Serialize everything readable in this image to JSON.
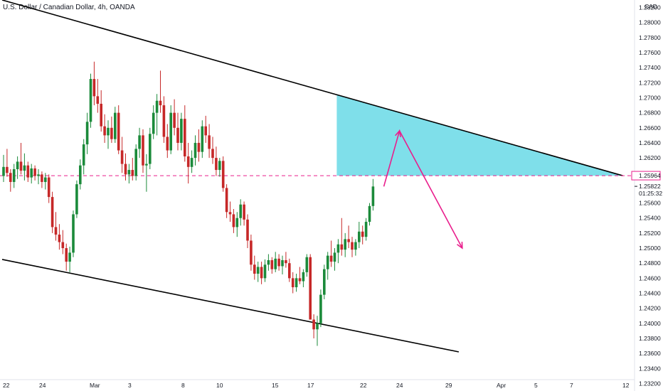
{
  "header": {
    "symbol_title": "U.S. Dollar / Canadian Dollar, 4h, OANDA"
  },
  "chart_data": {
    "type": "candlestick",
    "title": "U.S. Dollar / Canadian Dollar, 4h, OANDA",
    "currency_label": "CAD",
    "y_axis": {
      "range": [
        1.231,
        1.283
      ],
      "ticks": [
        "1.23200",
        "1.23400",
        "1.23600",
        "1.23800",
        "1.24000",
        "1.24200",
        "1.24400",
        "1.24600",
        "1.24800",
        "1.25000",
        "1.25200",
        "1.25400",
        "1.25600",
        "1.25822",
        "1.25964",
        "1.26200",
        "1.26400",
        "1.26600",
        "1.26800",
        "1.27000",
        "1.27200",
        "1.27400",
        "1.27600",
        "1.27800",
        "1.28000",
        "1.28200"
      ]
    },
    "x_axis": {
      "labels": [
        "22",
        "24",
        "Mar",
        "3",
        "8",
        "10",
        "15",
        "17",
        "22",
        "24",
        "29",
        "Apr",
        "5",
        "7",
        "12"
      ]
    },
    "price_line": {
      "value": 1.25964,
      "label": "1.25964",
      "color": "#e91e8c"
    },
    "last_price": {
      "value": 1.25822,
      "label": "1.25822"
    },
    "countdown": "01:25:32",
    "colors": {
      "up": "#26a69a",
      "up_body": "#1b8a3a",
      "down": "#c62828",
      "zone": "#7fdfea",
      "arrow": "#e91e8c",
      "trendline": "#000000"
    },
    "candles_ohlc": [
      [
        1.2596,
        1.2624,
        1.2588,
        1.2608
      ],
      [
        1.2608,
        1.2632,
        1.2595,
        1.26
      ],
      [
        1.26,
        1.2605,
        1.2575,
        1.2588
      ],
      [
        1.2588,
        1.2612,
        1.258,
        1.2605
      ],
      [
        1.2605,
        1.2622,
        1.2592,
        1.2615
      ],
      [
        1.2615,
        1.264,
        1.2598,
        1.2603
      ],
      [
        1.2603,
        1.2626,
        1.259,
        1.261
      ],
      [
        1.261,
        1.2615,
        1.2588,
        1.2594
      ],
      [
        1.2594,
        1.2612,
        1.2586,
        1.2606
      ],
      [
        1.2606,
        1.261,
        1.259,
        1.2596
      ],
      [
        1.2596,
        1.2605,
        1.2585,
        1.2598
      ],
      [
        1.2598,
        1.2602,
        1.258,
        1.2588
      ],
      [
        1.2588,
        1.26,
        1.2578,
        1.2594
      ],
      [
        1.2594,
        1.2598,
        1.256,
        1.2568
      ],
      [
        1.2568,
        1.2575,
        1.252,
        1.2528
      ],
      [
        1.2528,
        1.2548,
        1.251,
        1.2518
      ],
      [
        1.2518,
        1.2532,
        1.2498,
        1.2508
      ],
      [
        1.2508,
        1.2524,
        1.2492,
        1.25
      ],
      [
        1.25,
        1.2506,
        1.247,
        1.2482
      ],
      [
        1.2482,
        1.2502,
        1.2468,
        1.2494
      ],
      [
        1.2494,
        1.255,
        1.2488,
        1.2545
      ],
      [
        1.2545,
        1.259,
        1.254,
        1.2585
      ],
      [
        1.2585,
        1.2618,
        1.2578,
        1.261
      ],
      [
        1.261,
        1.2645,
        1.2598,
        1.2638
      ],
      [
        1.2638,
        1.268,
        1.2625,
        1.2668
      ],
      [
        1.2668,
        1.2732,
        1.266,
        1.2725
      ],
      [
        1.2725,
        1.2748,
        1.269,
        1.2702
      ],
      [
        1.2702,
        1.2725,
        1.268,
        1.2692
      ],
      [
        1.2692,
        1.271,
        1.2655,
        1.2662
      ],
      [
        1.2662,
        1.2678,
        1.264,
        1.265
      ],
      [
        1.265,
        1.267,
        1.2632,
        1.266
      ],
      [
        1.266,
        1.2675,
        1.264,
        1.2645
      ],
      [
        1.2645,
        1.2688,
        1.264,
        1.268
      ],
      [
        1.268,
        1.269,
        1.2625,
        1.263
      ],
      [
        1.263,
        1.2648,
        1.26,
        1.2612
      ],
      [
        1.2612,
        1.2626,
        1.259,
        1.2598
      ],
      [
        1.2598,
        1.2612,
        1.2586,
        1.2604
      ],
      [
        1.2604,
        1.262,
        1.259,
        1.2596
      ],
      [
        1.2596,
        1.2638,
        1.259,
        1.2632
      ],
      [
        1.2632,
        1.266,
        1.262,
        1.265
      ],
      [
        1.265,
        1.2658,
        1.26,
        1.261
      ],
      [
        1.261,
        1.2625,
        1.2575,
        1.2612
      ],
      [
        1.2612,
        1.266,
        1.2605,
        1.2652
      ],
      [
        1.2652,
        1.269,
        1.2645,
        1.268
      ],
      [
        1.268,
        1.2705,
        1.265,
        1.2696
      ],
      [
        1.2696,
        1.2736,
        1.268,
        1.269
      ],
      [
        1.269,
        1.2702,
        1.264,
        1.2648
      ],
      [
        1.2648,
        1.2665,
        1.262,
        1.263
      ],
      [
        1.263,
        1.269,
        1.2625,
        1.268
      ],
      [
        1.268,
        1.2698,
        1.265,
        1.266
      ],
      [
        1.266,
        1.268,
        1.263,
        1.264
      ],
      [
        1.264,
        1.268,
        1.263,
        1.2672
      ],
      [
        1.2672,
        1.269,
        1.2615,
        1.2622
      ],
      [
        1.2622,
        1.264,
        1.2586,
        1.2608
      ],
      [
        1.2608,
        1.263,
        1.26,
        1.262
      ],
      [
        1.262,
        1.265,
        1.261,
        1.264
      ],
      [
        1.264,
        1.2658,
        1.2615,
        1.2628
      ],
      [
        1.2628,
        1.267,
        1.262,
        1.2662
      ],
      [
        1.2662,
        1.2676,
        1.264,
        1.265
      ],
      [
        1.265,
        1.2665,
        1.262,
        1.2632
      ],
      [
        1.2632,
        1.2648,
        1.2612,
        1.262
      ],
      [
        1.262,
        1.2635,
        1.2596,
        1.2604
      ],
      [
        1.2604,
        1.262,
        1.2595,
        1.2616
      ],
      [
        1.2616,
        1.2622,
        1.2575,
        1.258
      ],
      [
        1.258,
        1.2585,
        1.254,
        1.2548
      ],
      [
        1.2548,
        1.2562,
        1.2535,
        1.2545
      ],
      [
        1.2545,
        1.2552,
        1.252,
        1.2528
      ],
      [
        1.2528,
        1.2548,
        1.2515,
        1.254
      ],
      [
        1.254,
        1.2565,
        1.253,
        1.2558
      ],
      [
        1.2558,
        1.2562,
        1.253,
        1.2538
      ],
      [
        1.2538,
        1.2545,
        1.25,
        1.251
      ],
      [
        1.251,
        1.2518,
        1.247,
        1.2478
      ],
      [
        1.2478,
        1.249,
        1.2458,
        1.2466
      ],
      [
        1.2466,
        1.2482,
        1.2455,
        1.2475
      ],
      [
        1.2475,
        1.2482,
        1.2452,
        1.246
      ],
      [
        1.246,
        1.2485,
        1.2455,
        1.2478
      ],
      [
        1.2478,
        1.2492,
        1.247,
        1.2484
      ],
      [
        1.2484,
        1.2488,
        1.2466,
        1.2472
      ],
      [
        1.2472,
        1.2495,
        1.2468,
        1.2486
      ],
      [
        1.2486,
        1.2492,
        1.247,
        1.2476
      ],
      [
        1.2476,
        1.249,
        1.2465,
        1.2484
      ],
      [
        1.2484,
        1.2495,
        1.2474,
        1.248
      ],
      [
        1.248,
        1.2486,
        1.2455,
        1.246
      ],
      [
        1.246,
        1.2468,
        1.244,
        1.2448
      ],
      [
        1.2448,
        1.2466,
        1.2442,
        1.246
      ],
      [
        1.246,
        1.2475,
        1.2452,
        1.2456
      ],
      [
        1.2456,
        1.2472,
        1.2448,
        1.2468
      ],
      [
        1.2468,
        1.2492,
        1.2462,
        1.2488
      ],
      [
        1.2488,
        1.2492,
        1.244,
        1.2405
      ],
      [
        1.2405,
        1.2412,
        1.238,
        1.2392
      ],
      [
        1.2392,
        1.241,
        1.237,
        1.24
      ],
      [
        1.24,
        1.2445,
        1.2395,
        1.2438
      ],
      [
        1.2438,
        1.2478,
        1.2432,
        1.2472
      ],
      [
        1.2472,
        1.2495,
        1.2458,
        1.249
      ],
      [
        1.249,
        1.251,
        1.2475,
        1.2482
      ],
      [
        1.2482,
        1.25,
        1.247,
        1.2494
      ],
      [
        1.2494,
        1.2512,
        1.248,
        1.2505
      ],
      [
        1.2505,
        1.254,
        1.249,
        1.2498
      ],
      [
        1.2498,
        1.252,
        1.2488,
        1.2512
      ],
      [
        1.2512,
        1.253,
        1.25,
        1.2508
      ],
      [
        1.2508,
        1.2515,
        1.2488,
        1.2498
      ],
      [
        1.2498,
        1.2512,
        1.249,
        1.2508
      ],
      [
        1.2508,
        1.2535,
        1.25,
        1.2522
      ],
      [
        1.2522,
        1.253,
        1.2505,
        1.2515
      ],
      [
        1.2515,
        1.254,
        1.251,
        1.2535
      ],
      [
        1.2535,
        1.256,
        1.253,
        1.2556
      ],
      [
        1.2556,
        1.2592,
        1.255,
        1.2582
      ]
    ],
    "annotations": {
      "upper_trendline": {
        "from": [
          0,
          1.283
        ],
        "to": [
          178,
          1.25964
        ]
      },
      "lower_trendline": {
        "from": [
          0,
          1.2485
        ],
        "to": [
          131,
          1.2362
        ]
      },
      "zone": {
        "x_from": 96,
        "x_to": 178,
        "y_bottom": 1.25964
      },
      "projection_arrow": {
        "points": [
          [
            109.5,
            1.2582
          ],
          [
            114,
            1.2656
          ],
          [
            132,
            1.25
          ]
        ]
      }
    }
  }
}
